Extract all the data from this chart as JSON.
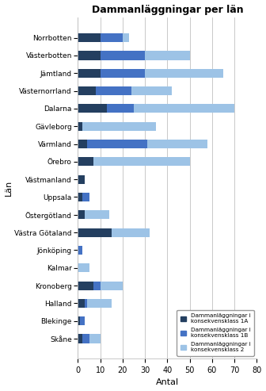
{
  "title": "Dammanläggningar per län",
  "xlabel": "Antal",
  "ylabel": "Län",
  "categories": [
    "Norrbotten",
    "Västerbotten",
    "Jämtland",
    "Västernorrland",
    "Dalarna",
    "Gävleborg",
    "Värmland",
    "Örebro",
    "Västmanland",
    "Uppsala",
    "Östergötland",
    "Västra Götaland",
    "Jönköping",
    "Kalmar",
    "Kronoberg",
    "Halland",
    "Blekinge",
    "Skåne"
  ],
  "class_1A": [
    10,
    10,
    10,
    8,
    13,
    2,
    4,
    7,
    3,
    2,
    3,
    15,
    0,
    0,
    7,
    3,
    1,
    2
  ],
  "class_1B": [
    10,
    20,
    20,
    16,
    12,
    0,
    27,
    0,
    0,
    3,
    0,
    0,
    2,
    0,
    3,
    1,
    2,
    3
  ],
  "class_2": [
    3,
    20,
    35,
    18,
    45,
    33,
    27,
    43,
    0,
    0,
    11,
    17,
    0,
    5,
    10,
    11,
    0,
    5
  ],
  "color_1A": "#243F60",
  "color_1B": "#4472C4",
  "color_2": "#9DC3E6",
  "legend_1A": "Dammanläggningar i\nkonsekvensklass 1A",
  "legend_1B": "Dammanläggningar i\nkonsekvensklass 1B",
  "legend_2": "Dammanläggningar i\nkonsekvensklass 2",
  "xlim": [
    0,
    80
  ],
  "xticks": [
    0,
    10,
    20,
    30,
    40,
    50,
    60,
    70,
    80
  ]
}
